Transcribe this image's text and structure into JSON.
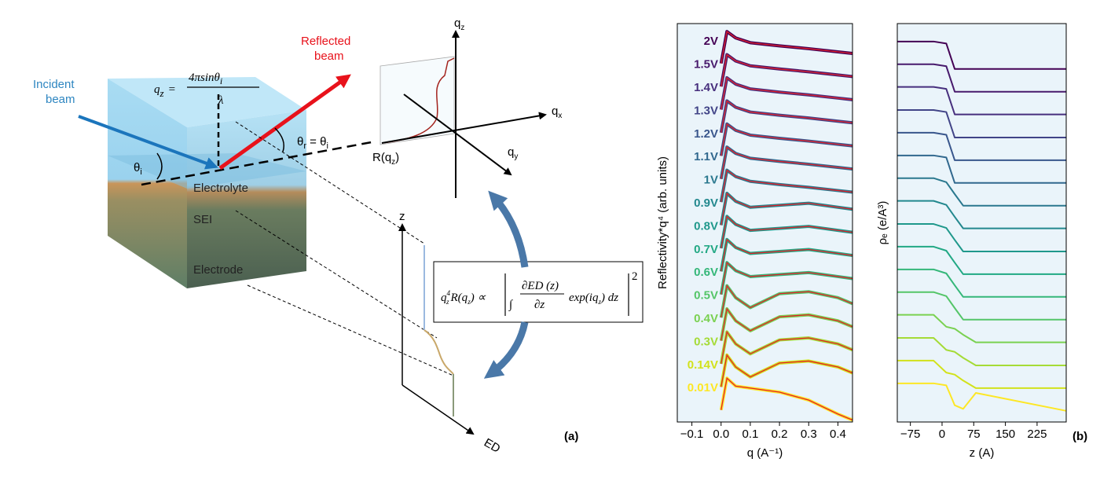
{
  "diagram": {
    "incident_beam": [
      "Incident",
      "beam"
    ],
    "reflected_beam": [
      "Reflected",
      "beam"
    ],
    "qz_formula": {
      "lhs": "q",
      "lhs_sub": "z",
      "eq": "=",
      "numerator": "4πsinθ",
      "numerator_sub": "i",
      "denominator": "λ"
    },
    "theta_i": {
      "main": "θ",
      "sub": "i"
    },
    "theta_r": {
      "main": "θ",
      "sub": "r",
      "rest": " = θ",
      "rest_sub": "i"
    },
    "layers": [
      "Electrolyte",
      "SEI",
      "Electrode"
    ],
    "r_label": {
      "main": "R(q",
      "sub": "z",
      "end": ")"
    },
    "axes": {
      "qz": {
        "main": "q",
        "sub": "z"
      },
      "qx": {
        "main": "q",
        "sub": "x"
      },
      "qy": {
        "main": "q",
        "sub": "y"
      }
    },
    "ed_axes": {
      "z": "z",
      "ed": "ED"
    },
    "equation": {
      "lhs": "q",
      "lhs_sup": "4",
      "lhs_sub": "z",
      "r": "R(q",
      "r_sub": "z",
      "r_end": ") ∝",
      "integral": "∫",
      "numerator": "∂ED (z)",
      "denominator": "∂z",
      "exp": "exp(iq",
      "exp_sub": "z",
      "exp_end": ") dz",
      "power": "2"
    },
    "panel_a": "(a)",
    "panel_b": "(b)"
  },
  "chart_data": [
    {
      "type": "line",
      "xlabel": "q (A⁻¹)",
      "ylabel": "Reflectivity*q⁴ (arb. units)",
      "xlim": [
        -0.15,
        0.45
      ],
      "xticks": [
        {
          "value": -0.1,
          "label": "−0.1"
        },
        {
          "value": 0,
          "label": "0.0"
        },
        0.1,
        0.2,
        0.3,
        0.4
      ],
      "ylim": [
        0,
        100
      ],
      "fit_color": "#e4202a",
      "x": [
        0,
        0.02,
        0.05,
        0.1,
        0.2,
        0.3,
        0.4,
        0.45
      ],
      "series": [
        {
          "name": "2V",
          "color": "#440154",
          "values": [
            90,
            98,
            96.4,
            95.2,
            94.4,
            93.7,
            92.9,
            92.5
          ]
        },
        {
          "name": "1.5V",
          "color": "#481a6c",
          "values": [
            84.2,
            92.2,
            90.6,
            89.4,
            88.6,
            87.9,
            87.1,
            86.7
          ]
        },
        {
          "name": "1.4V",
          "color": "#472f7d",
          "values": [
            78.4,
            86.4,
            84.8,
            83.6,
            82.8,
            82.1,
            81.3,
            80.9
          ]
        },
        {
          "name": "1.3V",
          "color": "#414487",
          "values": [
            72.6,
            80.6,
            79,
            77.8,
            77,
            76.3,
            75.5,
            75.1
          ]
        },
        {
          "name": "1.2V",
          "color": "#39568c",
          "values": [
            66.8,
            74.8,
            73.2,
            72,
            71.2,
            70.5,
            69.7,
            69.3
          ]
        },
        {
          "name": "1.1V",
          "color": "#31688e",
          "values": [
            61,
            69,
            67.4,
            66.2,
            65.4,
            64.7,
            63.9,
            63.5
          ]
        },
        {
          "name": "1V",
          "color": "#2a788e",
          "values": [
            55.2,
            63.2,
            61.6,
            60.4,
            59.6,
            58.9,
            58.1,
            57.7
          ]
        },
        {
          "name": "0.9V",
          "color": "#23888e",
          "values": [
            49.4,
            57.4,
            55.4,
            53.9,
            54.4,
            54.9,
            53.9,
            53.4
          ]
        },
        {
          "name": "0.8V",
          "color": "#1f988b",
          "values": [
            43.6,
            51.6,
            49.6,
            48.1,
            48.6,
            49.1,
            48.1,
            47.6
          ]
        },
        {
          "name": "0.7V",
          "color": "#22a884",
          "values": [
            37.8,
            45.8,
            43.8,
            42.3,
            42.8,
            43.3,
            42.3,
            41.8
          ]
        },
        {
          "name": "0.6V",
          "color": "#35b779",
          "values": [
            32,
            40,
            38,
            36.5,
            37,
            37.5,
            36.5,
            36
          ]
        },
        {
          "name": "0.5V",
          "color": "#54c568",
          "values": [
            26.2,
            34.2,
            31.2,
            28.7,
            32.2,
            32.7,
            31.2,
            29.7
          ]
        },
        {
          "name": "0.4V",
          "color": "#7ad151",
          "values": [
            20.4,
            28.4,
            25.4,
            22.9,
            26.4,
            26.9,
            25.4,
            23.9
          ]
        },
        {
          "name": "0.3V",
          "color": "#a5db36",
          "values": [
            14.6,
            22.6,
            19.6,
            17.1,
            20.6,
            21.1,
            19.6,
            18.1
          ]
        },
        {
          "name": "0.14V",
          "color": "#d2e21b",
          "values": [
            8.8,
            16.8,
            13.8,
            11.3,
            14.8,
            15.3,
            13.8,
            12.3
          ]
        },
        {
          "name": "0.01V",
          "color": "#fde725",
          "values": [
            3,
            11,
            9,
            8.5,
            7.5,
            5.5,
            2,
            0.5
          ]
        }
      ]
    },
    {
      "type": "line",
      "xlabel": "z (A)",
      "ylabel": "ρₑ (e/A³)",
      "xlim": [
        -106,
        294
      ],
      "xticks": [
        {
          "value": -75,
          "label": "−75"
        },
        0,
        75,
        150,
        225
      ],
      "ylim": [
        0,
        100
      ],
      "x": [
        -106,
        -20,
        10,
        30,
        50,
        80,
        294
      ],
      "series": [
        {
          "color": "#440154",
          "values": [
            95.5,
            95.5,
            95,
            88.6,
            88.6,
            88.6,
            88.6
          ]
        },
        {
          "color": "#481a6c",
          "values": [
            89.8,
            89.8,
            89.3,
            82.9,
            82.9,
            82.9,
            82.9
          ]
        },
        {
          "color": "#472f7d",
          "values": [
            84.1,
            84.1,
            83.6,
            77.2,
            77.2,
            77.2,
            77.2
          ]
        },
        {
          "color": "#414487",
          "values": [
            78.3,
            78.3,
            77.8,
            71.4,
            71.4,
            71.4,
            71.4
          ]
        },
        {
          "color": "#39568c",
          "values": [
            72.6,
            72.6,
            72.1,
            65.7,
            65.7,
            65.7,
            65.7
          ]
        },
        {
          "color": "#31688e",
          "values": [
            66.9,
            66.9,
            66.4,
            60,
            60,
            60,
            60
          ]
        },
        {
          "color": "#2a788e",
          "values": [
            61.2,
            61.2,
            60.2,
            57.2,
            54.3,
            54.3,
            54.3
          ]
        },
        {
          "color": "#23888e",
          "values": [
            55.5,
            55.5,
            54.5,
            51.5,
            48.6,
            48.6,
            48.6
          ]
        },
        {
          "color": "#1f988b",
          "values": [
            49.7,
            49.7,
            48.7,
            45.7,
            42.8,
            42.8,
            42.8
          ]
        },
        {
          "color": "#22a884",
          "values": [
            44,
            44,
            43,
            40,
            37.1,
            37.1,
            37.1
          ]
        },
        {
          "color": "#35b779",
          "values": [
            38.3,
            38.3,
            37.3,
            34.3,
            31.4,
            31.4,
            31.4
          ]
        },
        {
          "color": "#54c568",
          "values": [
            32.6,
            32.6,
            31.6,
            28.6,
            25.7,
            25.7,
            25.7
          ]
        },
        {
          "color": "#7ad151",
          "values": [
            26.9,
            26.9,
            23.9,
            23.4,
            21.9,
            20,
            20
          ]
        },
        {
          "color": "#a5db36",
          "values": [
            21.1,
            21.1,
            18.1,
            17.6,
            16.1,
            14.2,
            14.2
          ]
        },
        {
          "color": "#d2e21b",
          "values": [
            15.4,
            15.4,
            12.4,
            11.9,
            10.4,
            8.5,
            8.5
          ]
        },
        {
          "color": "#fde725",
          "values": [
            9.7,
            9.7,
            9.2,
            4.2,
            3.3,
            7.3,
            2.8
          ]
        }
      ]
    }
  ]
}
